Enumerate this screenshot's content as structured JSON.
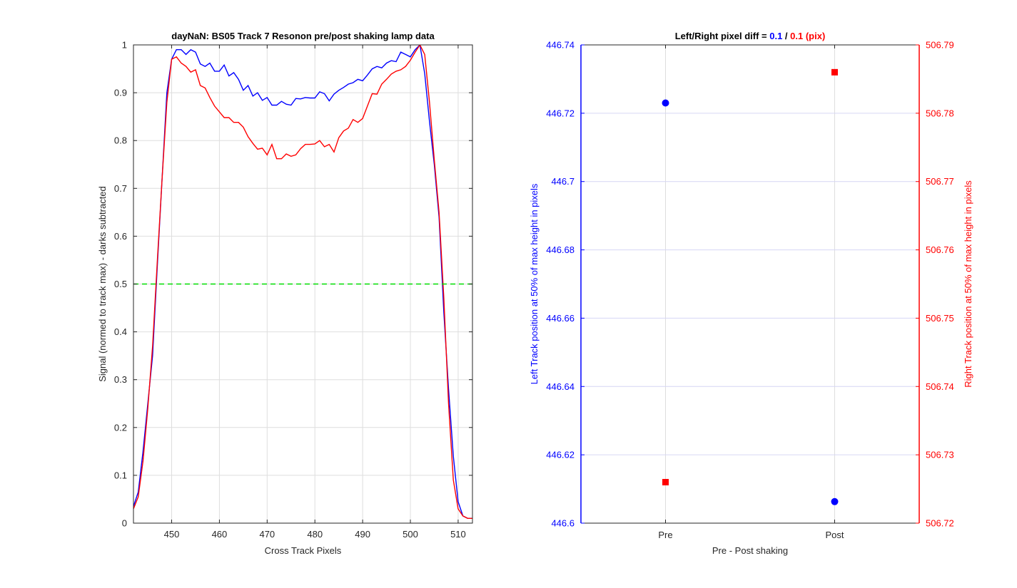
{
  "figure": {
    "background": "#ffffff"
  },
  "chart_data": [
    {
      "type": "line",
      "title": "dayNaN: BS05  Track 7 Resonon pre/post shaking lamp data",
      "xlabel": "Cross Track Pixels",
      "ylabel": "Signal (normed to track max) - darks subtracted",
      "xlim": [
        442,
        513
      ],
      "ylim": [
        0,
        1
      ],
      "xticks": [
        450,
        460,
        470,
        480,
        490,
        500,
        510
      ],
      "yticks": [
        0,
        0.1,
        0.2,
        0.3,
        0.4,
        0.5,
        0.6,
        0.7,
        0.8,
        0.9,
        1
      ],
      "ytick_labels": [
        "0",
        "0.1",
        "0.2",
        "0.3",
        "0.4",
        "0.5",
        "0.6",
        "0.7",
        "0.8",
        "0.9",
        "1"
      ],
      "grid": true,
      "x": [
        442,
        443,
        444,
        445,
        446,
        447,
        448,
        449,
        450,
        451,
        452,
        453,
        454,
        455,
        456,
        457,
        458,
        459,
        460,
        461,
        462,
        463,
        464,
        465,
        466,
        467,
        468,
        469,
        470,
        471,
        472,
        473,
        474,
        475,
        476,
        477,
        478,
        479,
        480,
        481,
        482,
        483,
        484,
        485,
        486,
        487,
        488,
        489,
        490,
        491,
        492,
        493,
        494,
        495,
        496,
        497,
        498,
        499,
        500,
        501,
        502,
        503,
        504,
        505,
        506,
        507,
        508,
        509,
        510,
        511,
        512,
        513
      ],
      "series": [
        {
          "color": "#0000ff",
          "values": [
            0.035,
            0.065,
            0.15,
            0.25,
            0.35,
            0.54,
            0.72,
            0.9,
            0.97,
            0.99,
            0.99,
            0.98,
            0.99,
            0.985,
            0.96,
            0.955,
            0.962,
            0.945,
            0.945,
            0.958,
            0.935,
            0.942,
            0.928,
            0.905,
            0.915,
            0.893,
            0.9,
            0.884,
            0.89,
            0.874,
            0.874,
            0.882,
            0.876,
            0.874,
            0.888,
            0.887,
            0.89,
            0.889,
            0.889,
            0.902,
            0.898,
            0.883,
            0.897,
            0.905,
            0.911,
            0.918,
            0.921,
            0.928,
            0.925,
            0.937,
            0.95,
            0.955,
            0.952,
            0.962,
            0.967,
            0.965,
            0.985,
            0.98,
            0.975,
            0.99,
            1.0,
            0.94,
            0.84,
            0.75,
            0.64,
            0.44,
            0.28,
            0.14,
            0.045,
            0.015,
            0.01,
            0.01
          ]
        },
        {
          "color": "#ff0000",
          "values": [
            0.03,
            0.055,
            0.13,
            0.24,
            0.37,
            0.55,
            0.72,
            0.88,
            0.97,
            0.975,
            0.962,
            0.955,
            0.943,
            0.948,
            0.915,
            0.91,
            0.89,
            0.872,
            0.86,
            0.848,
            0.848,
            0.838,
            0.838,
            0.828,
            0.808,
            0.794,
            0.782,
            0.784,
            0.77,
            0.792,
            0.762,
            0.762,
            0.772,
            0.767,
            0.77,
            0.783,
            0.792,
            0.792,
            0.793,
            0.8,
            0.787,
            0.792,
            0.776,
            0.806,
            0.82,
            0.826,
            0.844,
            0.838,
            0.846,
            0.872,
            0.898,
            0.897,
            0.918,
            0.928,
            0.939,
            0.945,
            0.948,
            0.955,
            0.968,
            0.985,
            1.0,
            0.98,
            0.88,
            0.76,
            0.65,
            0.47,
            0.25,
            0.09,
            0.03,
            0.015,
            0.01,
            0.01
          ]
        }
      ],
      "hline": {
        "y": 0.5,
        "color": "#00dd00",
        "style": "dashed"
      }
    },
    {
      "type": "scatter",
      "title_parts": [
        {
          "text": "Left/Right pixel diff = ",
          "color": "#000000"
        },
        {
          "text": "0.1",
          "color": "#0000ff"
        },
        {
          "text": " / ",
          "color": "#000000"
        },
        {
          "text": "0.1 (pix)",
          "color": "#ff0000"
        }
      ],
      "xlabel": "Pre - Post shaking",
      "categories": [
        "Pre",
        "Post"
      ],
      "xlim": [
        0.5,
        2.5
      ],
      "left_axis": {
        "label": "Left Track position at 50% of max height in pixels",
        "color": "#0000ff",
        "ylim": [
          446.6,
          446.74
        ],
        "ticks": [
          446.6,
          446.62,
          446.64,
          446.66,
          446.68,
          446.7,
          446.72,
          446.74
        ],
        "tick_labels": [
          "446.6",
          "446.62",
          "446.64",
          "446.66",
          "446.68",
          "446.7",
          "446.72",
          "446.74"
        ]
      },
      "right_axis": {
        "label": "Right Track position at 50% of max height in pixels",
        "color": "#ff0000",
        "ylim": [
          506.72,
          506.79
        ],
        "ticks": [
          506.72,
          506.73,
          506.74,
          506.75,
          506.76,
          506.77,
          506.78,
          506.79
        ],
        "tick_labels": [
          "506.72",
          "506.73",
          "506.74",
          "506.75",
          "506.76",
          "506.77",
          "506.78",
          "506.79"
        ]
      },
      "series": [
        {
          "axis": "left",
          "marker": "circle",
          "color": "#0000ff",
          "values": [
            446.723,
            446.6063
          ]
        },
        {
          "axis": "right",
          "marker": "square",
          "color": "#ff0000",
          "values": [
            506.726,
            506.786
          ]
        }
      ]
    }
  ]
}
